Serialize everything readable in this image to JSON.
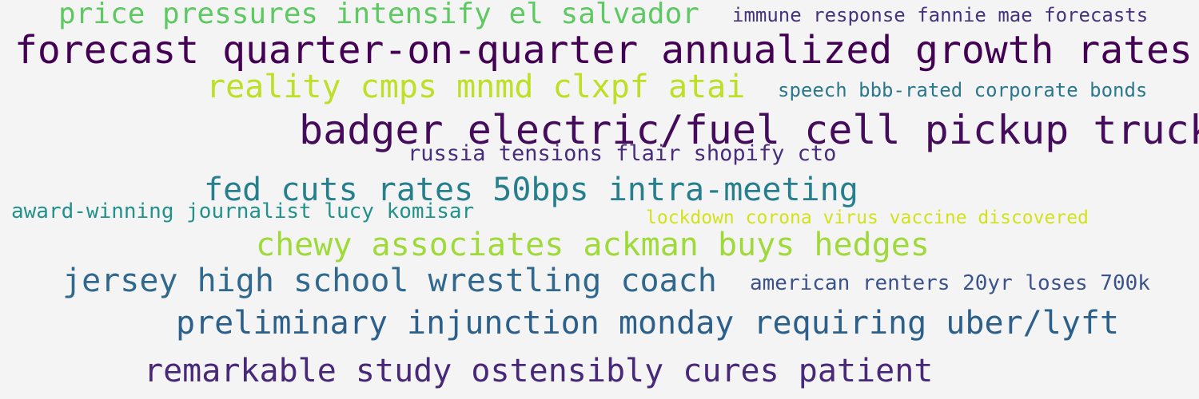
{
  "words": [
    {
      "text": "price pressures intensify el salvador",
      "color": "#5ec962"
    },
    {
      "text": "immune response fannie mae forecasts",
      "color": "#46337e"
    },
    {
      "text": "forecast quarter-on-quarter annualized growth rates",
      "color": "#440154"
    },
    {
      "text": "reality cmps mnmd clxpf atai",
      "color": "#bddf26"
    },
    {
      "text": "speech bbb-rated corporate bonds",
      "color": "#2a788e"
    },
    {
      "text": "badger electric/fuel cell pickup truck",
      "color": "#440c5a"
    },
    {
      "text": "russia tensions flair shopify cto",
      "color": "#472d7b"
    },
    {
      "text": "fed cuts rates 50bps intra-meeting",
      "color": "#277f8e"
    },
    {
      "text": "award-winning journalist lucy komisar",
      "color": "#21918c"
    },
    {
      "text": "lockdown corona virus vaccine discovered",
      "color": "#d2e21b"
    },
    {
      "text": "chewy associates ackman buys hedges",
      "color": "#9fda3a"
    },
    {
      "text": "jersey high school wrestling coach",
      "color": "#31688e"
    },
    {
      "text": "american renters 20yr loses 700k",
      "color": "#3b528b"
    },
    {
      "text": "preliminary injunction monday requiring uber/lyft",
      "color": "#2c5f8a"
    },
    {
      "text": "remarkable study ostensibly cures patient",
      "color": "#482878"
    }
  ]
}
